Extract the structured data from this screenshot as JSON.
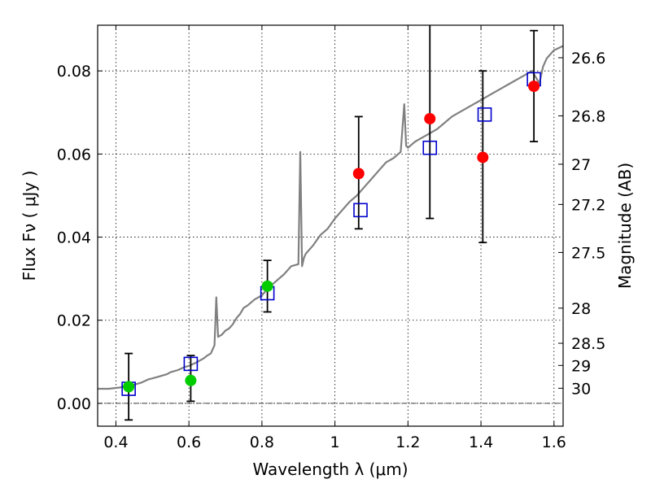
{
  "chart_data": {
    "type": "scatter",
    "xlabel": "Wavelength  λ (μm)",
    "ylabel": "Flux  Fν  ( μJy )",
    "y2label": "Magnitude (AB)",
    "xlim": [
      0.35,
      1.625
    ],
    "ylim": [
      -0.0055,
      0.091
    ],
    "grid": true,
    "x_ticks": [
      0.4,
      0.6,
      0.8,
      1.0,
      1.2,
      1.4,
      1.6
    ],
    "x_tick_labels": [
      "0.4",
      "0.6",
      "0.8",
      "1",
      "1.2",
      "1.4",
      "1.6"
    ],
    "y_ticks": [
      0.0,
      0.02,
      0.04,
      0.06,
      0.08
    ],
    "y_tick_labels": [
      "0.00",
      "0.02",
      "0.04",
      "0.06",
      "0.08"
    ],
    "y2_ticks": [
      {
        "label": "26.6",
        "mag": 26.6
      },
      {
        "label": "26.8",
        "mag": 26.8
      },
      {
        "label": "27",
        "mag": 27.0
      },
      {
        "label": "27.2",
        "mag": 27.2
      },
      {
        "label": "27.5",
        "mag": 27.5
      },
      {
        "label": "28",
        "mag": 28.0
      },
      {
        "label": "28.5",
        "mag": 28.5
      },
      {
        "label": "29",
        "mag": 29.0
      },
      {
        "label": "30",
        "mag": 30.0
      }
    ],
    "zero_line": 0.0,
    "colors": {
      "model_spectrum": "#808080",
      "model_points": "#0000cc",
      "detections": "#00cc00",
      "non_detections": "#ff0000",
      "errorbars": "#000000"
    },
    "series": [
      {
        "kind": "line",
        "x": [
          0.35,
          0.38,
          0.41,
          0.43,
          0.45,
          0.47,
          0.49,
          0.5,
          0.52,
          0.54,
          0.55,
          0.57,
          0.59,
          0.6,
          0.62,
          0.64,
          0.65,
          0.66,
          0.67,
          0.675,
          0.68,
          0.69,
          0.7,
          0.71,
          0.72,
          0.73,
          0.74,
          0.75,
          0.76,
          0.78,
          0.8,
          0.82,
          0.84,
          0.86,
          0.88,
          0.9,
          0.905,
          0.91,
          0.915,
          0.92,
          0.94,
          0.96,
          0.98,
          1.0,
          1.02,
          1.04,
          1.06,
          1.08,
          1.1,
          1.12,
          1.14,
          1.16,
          1.18,
          1.19,
          1.195,
          1.2,
          1.22,
          1.24,
          1.26,
          1.28,
          1.3,
          1.32,
          1.34,
          1.36,
          1.38,
          1.4,
          1.42,
          1.44,
          1.46,
          1.48,
          1.5,
          1.52,
          1.54,
          1.56,
          1.57,
          1.58,
          1.6,
          1.625
        ],
        "y": [
          0.0035,
          0.0035,
          0.0038,
          0.0042,
          0.0045,
          0.005,
          0.0058,
          0.006,
          0.0065,
          0.007,
          0.0075,
          0.008,
          0.0088,
          0.009,
          0.0098,
          0.0108,
          0.0115,
          0.012,
          0.014,
          0.0255,
          0.016,
          0.0165,
          0.0175,
          0.018,
          0.019,
          0.0205,
          0.0215,
          0.023,
          0.0235,
          0.025,
          0.026,
          0.028,
          0.0295,
          0.031,
          0.033,
          0.0335,
          0.0605,
          0.033,
          0.035,
          0.036,
          0.038,
          0.0405,
          0.042,
          0.0445,
          0.0465,
          0.0485,
          0.05,
          0.052,
          0.054,
          0.056,
          0.058,
          0.059,
          0.0605,
          0.072,
          0.062,
          0.0615,
          0.063,
          0.064,
          0.065,
          0.066,
          0.0675,
          0.069,
          0.07,
          0.071,
          0.072,
          0.073,
          0.074,
          0.075,
          0.076,
          0.077,
          0.078,
          0.079,
          0.08,
          0.077,
          0.081,
          0.083,
          0.085,
          0.086
        ]
      },
      {
        "kind": "open-square",
        "x": [
          0.435,
          0.605,
          0.815,
          1.07,
          1.26,
          1.41,
          1.545
        ],
        "y": [
          0.0035,
          0.0095,
          0.0265,
          0.0465,
          0.0615,
          0.0695,
          0.078
        ]
      },
      {
        "kind": "filled-circle",
        "x": [
          0.435,
          0.605,
          0.815
        ],
        "y": [
          0.004,
          0.0055,
          0.0282
        ],
        "yerr_low": [
          0.008,
          0.005,
          0.0062
        ],
        "yerr_high": [
          0.008,
          0.006,
          0.0062
        ]
      },
      {
        "kind": "filled-circle",
        "x": [
          1.065,
          1.26,
          1.405,
          1.545
        ],
        "y": [
          0.0553,
          0.0685,
          0.0592,
          0.0763
        ],
        "yerr_low": [
          0.0133,
          0.024,
          0.0205,
          0.0133
        ],
        "yerr_high": [
          0.0137,
          0.0245,
          0.0208,
          0.0134
        ]
      }
    ]
  }
}
